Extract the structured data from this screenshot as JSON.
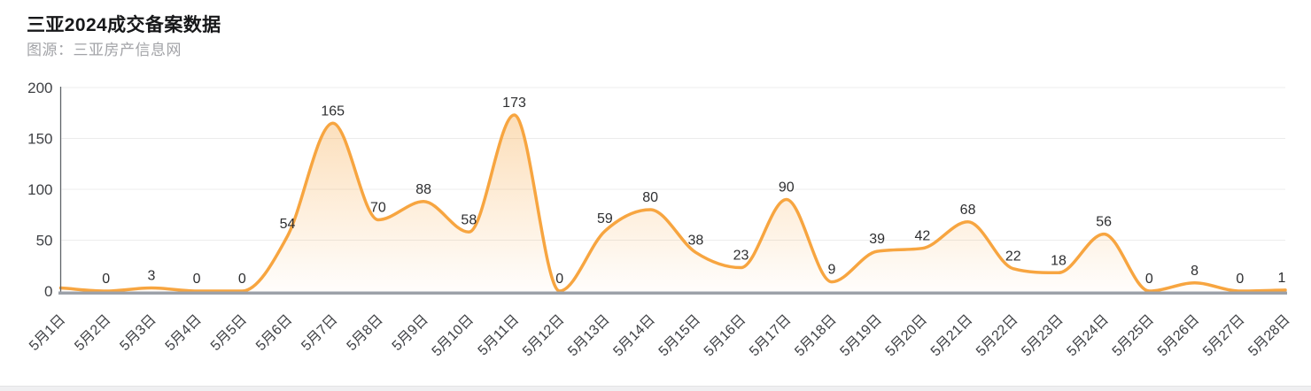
{
  "header": {
    "title": "三亚2024成交备案数据",
    "source": "图源：三亚房产信息网"
  },
  "chart_data": {
    "type": "area",
    "title": "三亚2024成交备案数据",
    "subtitle": "图源：三亚房产信息网",
    "categories": [
      "5月1日",
      "5月2日",
      "5月3日",
      "5月4日",
      "5月5日",
      "5月6日",
      "5月7日",
      "5月8日",
      "5月9日",
      "5月10日",
      "5月11日",
      "5月12日",
      "5月13日",
      "5月14日",
      "5月15日",
      "5月16日",
      "5月17日",
      "5月18日",
      "5月19日",
      "5月20日",
      "5月21日",
      "5月22日",
      "5月23日",
      "5月24日",
      "5月25日",
      "5月26日",
      "5月27日",
      "5月28日"
    ],
    "values": [
      3,
      0,
      3,
      0,
      0,
      54,
      165,
      70,
      88,
      58,
      173,
      0,
      59,
      80,
      38,
      23,
      90,
      9,
      39,
      42,
      68,
      22,
      18,
      56,
      0,
      8,
      0,
      1
    ],
    "point_labels": [
      "",
      "0",
      "3",
      "0",
      "0",
      "54",
      "165",
      "70",
      "88",
      "58",
      "173",
      "0",
      "59",
      "80",
      "38",
      "23",
      "90",
      "9",
      "39",
      "42",
      "68",
      "22",
      "18",
      "56",
      "0",
      "8",
      "0",
      "1"
    ],
    "xlabel": "",
    "ylabel": "",
    "ylim": [
      0,
      200
    ],
    "y_ticks": [
      0,
      50,
      100,
      150,
      200
    ],
    "grid": true,
    "legend": "none",
    "smooth": true,
    "line_color": "#F7A540",
    "area_top_color": "rgba(247,165,64,0.42)",
    "area_bottom_color": "rgba(247,165,64,0.02)",
    "axis_line_color": "#5F6368",
    "baseline_color": "#9CA1A9",
    "gridline_color": "#ECECEC",
    "tick_label_color": "#3F4145",
    "point_label_color": "#2D2E30"
  },
  "footer": {
    "divider_color": "#EFEFF1"
  }
}
